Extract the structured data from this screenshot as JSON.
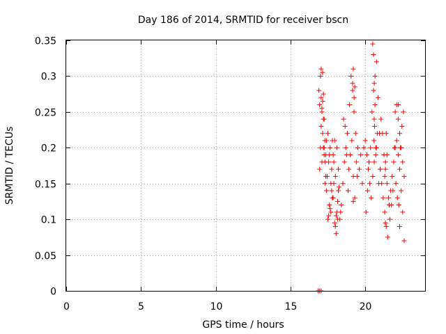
{
  "chart_data": {
    "type": "scatter",
    "title": "Day 186 of 2014, SRMTID for receiver bscn",
    "xlabel": "GPS time / hours",
    "ylabel": "SRMTID / TECUs",
    "xlim": [
      0,
      24
    ],
    "ylim": [
      0,
      0.35
    ],
    "xticks": [
      0,
      5,
      10,
      15,
      20
    ],
    "xtick_labels": [
      "0",
      "5",
      "10",
      "15",
      "20"
    ],
    "yticks": [
      0,
      0.05,
      0.1,
      0.15,
      0.2,
      0.25,
      0.3,
      0.35
    ],
    "ytick_labels": [
      "0",
      "0.05",
      "0.1",
      "0.15",
      "0.2",
      "0.25",
      "0.3",
      "0.35"
    ],
    "grid": true,
    "marker": "+",
    "color": "#ff0000",
    "series": [
      {
        "name": "SRMTID",
        "x": [
          16.85,
          16.95,
          17.05,
          16.9,
          16.95,
          17.0,
          17.05,
          17.1,
          17.15,
          17.2,
          17.25,
          17.3,
          17.35,
          17.4,
          16.95,
          17.05,
          17.15,
          17.25,
          17.35,
          17.0,
          17.1,
          17.2,
          17.3,
          17.05,
          17.15,
          17.25,
          17.1,
          17.2,
          17.3,
          17.4,
          17.5,
          17.6,
          17.7,
          17.8,
          17.9,
          18.0,
          18.1,
          18.2,
          18.3,
          18.4,
          17.45,
          17.55,
          17.65,
          17.75,
          17.85,
          17.95,
          18.05,
          18.15,
          18.25,
          18.35,
          17.5,
          17.6,
          17.7,
          17.8,
          17.9,
          18.0,
          18.1,
          18.2,
          17.55,
          17.65,
          17.75,
          17.85,
          17.95,
          18.05,
          18.15,
          18.5,
          18.6,
          18.7,
          18.8,
          18.9,
          19.0,
          19.1,
          19.2,
          19.3,
          19.4,
          19.5,
          18.55,
          18.65,
          18.75,
          18.85,
          18.95,
          19.05,
          19.15,
          19.25,
          19.35,
          19.45,
          19.15,
          19.2,
          19.25,
          19.3,
          19.2,
          19.6,
          19.7,
          19.8,
          19.9,
          20.0,
          20.1,
          20.2,
          20.3,
          20.4,
          20.5,
          20.6,
          20.7,
          20.8,
          20.9,
          21.0,
          20.05,
          20.15,
          20.25,
          20.35,
          20.45,
          20.55,
          20.65,
          20.75,
          20.85,
          20.95,
          20.5,
          20.55,
          20.6,
          20.65,
          20.6,
          20.62,
          20.58,
          20.7,
          20.75,
          21.0,
          21.1,
          21.2,
          21.3,
          21.4,
          21.5,
          21.6,
          21.7,
          21.8,
          21.9,
          22.0,
          21.05,
          21.15,
          21.25,
          21.35,
          21.45,
          21.55,
          21.65,
          21.75,
          21.85,
          21.95,
          21.3,
          21.35,
          21.4,
          21.45,
          21.35,
          22.0,
          22.1,
          22.2,
          22.3,
          22.4,
          22.5,
          22.6,
          22.05,
          22.15,
          22.25,
          22.35,
          22.45,
          22.55,
          22.1,
          22.2,
          22.3,
          22.4,
          22.5,
          22.6,
          22.2,
          22.3
        ],
        "y": [
          0.0,
          0.0,
          0.0,
          0.28,
          0.26,
          0.3,
          0.27,
          0.25,
          0.22,
          0.24,
          0.2,
          0.18,
          0.19,
          0.21,
          0.17,
          0.23,
          0.265,
          0.19,
          0.16,
          0.2,
          0.255,
          0.275,
          0.21,
          0.31,
          0.305,
          0.24,
          0.18,
          0.2,
          0.15,
          0.14,
          0.1,
          0.12,
          0.11,
          0.13,
          0.15,
          0.09,
          0.11,
          0.14,
          0.1,
          0.12,
          0.16,
          0.18,
          0.2,
          0.17,
          0.13,
          0.095,
          0.105,
          0.125,
          0.145,
          0.11,
          0.22,
          0.19,
          0.15,
          0.21,
          0.18,
          0.16,
          0.2,
          0.17,
          0.105,
          0.115,
          0.14,
          0.19,
          0.21,
          0.08,
          0.1,
          0.15,
          0.18,
          0.2,
          0.22,
          0.17,
          0.19,
          0.21,
          0.16,
          0.13,
          0.18,
          0.2,
          0.24,
          0.23,
          0.19,
          0.14,
          0.26,
          0.3,
          0.28,
          0.25,
          0.22,
          0.16,
          0.29,
          0.31,
          0.27,
          0.285,
          0.125,
          0.17,
          0.19,
          0.15,
          0.2,
          0.21,
          0.19,
          0.17,
          0.15,
          0.13,
          0.16,
          0.18,
          0.2,
          0.22,
          0.15,
          0.17,
          0.11,
          0.14,
          0.18,
          0.2,
          0.25,
          0.28,
          0.3,
          0.32,
          0.27,
          0.22,
          0.345,
          0.33,
          0.29,
          0.26,
          0.24,
          0.23,
          0.21,
          0.19,
          0.2,
          0.17,
          0.15,
          0.13,
          0.11,
          0.09,
          0.075,
          0.12,
          0.14,
          0.16,
          0.18,
          0.2,
          0.24,
          0.22,
          0.19,
          0.17,
          0.15,
          0.13,
          0.1,
          0.12,
          0.14,
          0.2,
          0.16,
          0.18,
          0.22,
          0.19,
          0.095,
          0.25,
          0.26,
          0.24,
          0.22,
          0.2,
          0.18,
          0.16,
          0.15,
          0.13,
          0.12,
          0.2,
          0.23,
          0.25,
          0.21,
          0.19,
          0.17,
          0.14,
          0.11,
          0.07,
          0.26,
          0.09
        ]
      }
    ]
  }
}
